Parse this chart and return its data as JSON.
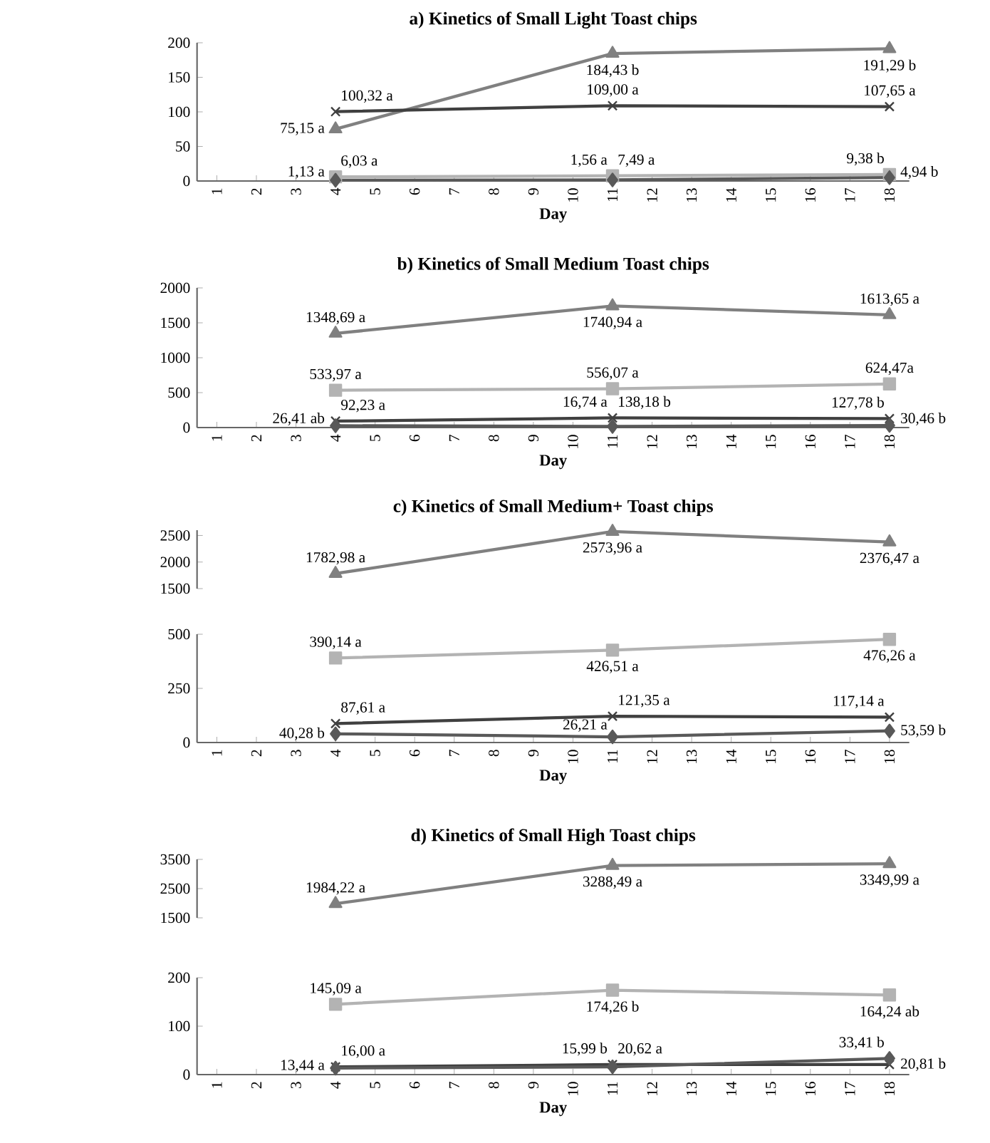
{
  "chart_data": [
    {
      "type": "line",
      "title": "a) Kinetics of Small Light Toast chips",
      "xlabel": "Day",
      "categories": [
        "1",
        "2",
        "3",
        "4",
        "5",
        "6",
        "7",
        "8",
        "9",
        "10",
        "11",
        "12",
        "13",
        "14",
        "15",
        "16",
        "17",
        "18"
      ],
      "ylim": [
        0,
        200
      ],
      "yticks": [
        0,
        50,
        100,
        150,
        200
      ],
      "series": [
        {
          "color": "#808080",
          "marker": "triangle",
          "values": [
            null,
            null,
            null,
            75.15,
            null,
            null,
            null,
            null,
            null,
            null,
            184.43,
            null,
            null,
            null,
            null,
            null,
            null,
            191.29
          ],
          "value_labels": [
            null,
            null,
            null,
            "75,15 a",
            null,
            null,
            null,
            null,
            null,
            null,
            "184,43 b",
            null,
            null,
            null,
            null,
            null,
            null,
            "191,29 b"
          ]
        },
        {
          "color": "#b3b3b3",
          "marker": "square",
          "values": [
            null,
            null,
            null,
            6.03,
            null,
            null,
            null,
            null,
            null,
            null,
            7.49,
            null,
            null,
            null,
            null,
            null,
            null,
            9.38
          ],
          "value_labels": [
            null,
            null,
            null,
            "6,03 a",
            null,
            null,
            null,
            null,
            null,
            null,
            "7,49 a",
            null,
            null,
            null,
            null,
            null,
            null,
            "9,38 b"
          ]
        },
        {
          "color": "#404040",
          "marker": "cross",
          "values": [
            null,
            null,
            null,
            100.32,
            null,
            null,
            null,
            null,
            null,
            null,
            109.0,
            null,
            null,
            null,
            null,
            null,
            null,
            107.65
          ],
          "value_labels": [
            null,
            null,
            null,
            "100,32 a",
            null,
            null,
            null,
            null,
            null,
            null,
            "109,00 a",
            null,
            null,
            null,
            null,
            null,
            null,
            "107,65 a"
          ]
        },
        {
          "color": "#595959",
          "marker": "diamond",
          "values": [
            null,
            null,
            null,
            1.13,
            null,
            null,
            null,
            null,
            null,
            null,
            1.56,
            null,
            null,
            null,
            null,
            null,
            null,
            4.94
          ],
          "value_labels": [
            null,
            null,
            null,
            "1,13 a",
            null,
            null,
            null,
            null,
            null,
            null,
            "1,56 a",
            null,
            null,
            null,
            null,
            null,
            null,
            "4,94 b"
          ]
        }
      ]
    },
    {
      "type": "line",
      "title": "b) Kinetics of Small Medium Toast chips",
      "xlabel": "Day",
      "categories": [
        "1",
        "2",
        "3",
        "4",
        "5",
        "6",
        "7",
        "8",
        "9",
        "10",
        "11",
        "12",
        "13",
        "14",
        "15",
        "16",
        "17",
        "18"
      ],
      "ylim": [
        0,
        2000
      ],
      "yticks": [
        0,
        500,
        1000,
        1500,
        2000
      ],
      "series": [
        {
          "color": "#808080",
          "marker": "triangle",
          "values": [
            null,
            null,
            null,
            1348.69,
            null,
            null,
            null,
            null,
            null,
            null,
            1740.94,
            null,
            null,
            null,
            null,
            null,
            null,
            1613.65
          ],
          "value_labels": [
            null,
            null,
            null,
            "1348,69 a",
            null,
            null,
            null,
            null,
            null,
            null,
            "1740,94 a",
            null,
            null,
            null,
            null,
            null,
            null,
            "1613,65 a"
          ]
        },
        {
          "color": "#b3b3b3",
          "marker": "square",
          "values": [
            null,
            null,
            null,
            533.97,
            null,
            null,
            null,
            null,
            null,
            null,
            556.07,
            null,
            null,
            null,
            null,
            null,
            null,
            624.47
          ],
          "value_labels": [
            null,
            null,
            null,
            "533,97 a",
            null,
            null,
            null,
            null,
            null,
            null,
            "556,07 a",
            null,
            null,
            null,
            null,
            null,
            null,
            "624,47a"
          ]
        },
        {
          "color": "#404040",
          "marker": "cross",
          "values": [
            null,
            null,
            null,
            92.23,
            null,
            null,
            null,
            null,
            null,
            null,
            138.18,
            null,
            null,
            null,
            null,
            null,
            null,
            127.78
          ],
          "value_labels": [
            null,
            null,
            null,
            "92,23 a",
            null,
            null,
            null,
            null,
            null,
            null,
            "138,18 b",
            null,
            null,
            null,
            null,
            null,
            null,
            "127,78 b"
          ]
        },
        {
          "color": "#595959",
          "marker": "diamond",
          "values": [
            null,
            null,
            null,
            26.41,
            null,
            null,
            null,
            null,
            null,
            null,
            16.74,
            null,
            null,
            null,
            null,
            null,
            null,
            30.46
          ],
          "value_labels": [
            null,
            null,
            null,
            "26,41 ab",
            null,
            null,
            null,
            null,
            null,
            null,
            "16,74 a",
            null,
            null,
            null,
            null,
            null,
            null,
            "30,46 b"
          ]
        }
      ]
    },
    {
      "type": "line",
      "title": "c) Kinetics of Small Medium+ Toast chips",
      "tick_labels": "y",
      "categories": [
        "1",
        "2",
        "3",
        "4",
        "5",
        "6",
        "7",
        "8",
        "9",
        "10",
        "11",
        "12",
        "13",
        "14",
        "15",
        "16",
        "17",
        "18"
      ],
      "ylim": [
        1500,
        2600
      ],
      "yticks": [
        1500,
        2000,
        2500
      ],
      "series": [
        {
          "color": "#808080",
          "marker": "triangle",
          "values": [
            null,
            null,
            null,
            1782.98,
            null,
            null,
            null,
            null,
            null,
            null,
            2573.96,
            null,
            null,
            null,
            null,
            null,
            null,
            2376.47
          ],
          "value_labels": [
            null,
            null,
            null,
            "1782,98 a",
            null,
            null,
            null,
            null,
            null,
            null,
            "2573,96 a",
            null,
            null,
            null,
            null,
            null,
            null,
            "2376,47 a"
          ]
        }
      ]
    },
    {
      "type": "line",
      "xlabel": "Day",
      "categories": [
        "1",
        "2",
        "3",
        "4",
        "5",
        "6",
        "7",
        "8",
        "9",
        "10",
        "11",
        "12",
        "13",
        "14",
        "15",
        "16",
        "17",
        "18"
      ],
      "ylim": [
        0,
        500
      ],
      "yticks": [
        0,
        250,
        500
      ],
      "series": [
        {
          "color": "#b3b3b3",
          "marker": "square",
          "values": [
            null,
            null,
            null,
            390.14,
            null,
            null,
            null,
            null,
            null,
            null,
            426.51,
            null,
            null,
            null,
            null,
            null,
            null,
            476.26
          ],
          "value_labels": [
            null,
            null,
            null,
            "390,14 a",
            null,
            null,
            null,
            null,
            null,
            null,
            "426,51 a",
            null,
            null,
            null,
            null,
            null,
            null,
            "476,26 a"
          ]
        },
        {
          "color": "#404040",
          "marker": "cross",
          "values": [
            null,
            null,
            null,
            87.61,
            null,
            null,
            null,
            null,
            null,
            null,
            121.35,
            null,
            null,
            null,
            null,
            null,
            null,
            117.14
          ],
          "value_labels": [
            null,
            null,
            null,
            "87,61 a",
            null,
            null,
            null,
            null,
            null,
            null,
            "121,35 a",
            null,
            null,
            null,
            null,
            null,
            null,
            "117,14 a"
          ]
        },
        {
          "color": "#595959",
          "marker": "diamond",
          "values": [
            null,
            null,
            null,
            40.28,
            null,
            null,
            null,
            null,
            null,
            null,
            26.21,
            null,
            null,
            null,
            null,
            null,
            null,
            53.59
          ],
          "value_labels": [
            null,
            null,
            null,
            "40,28 b",
            null,
            null,
            null,
            null,
            null,
            null,
            "26,21 a",
            null,
            null,
            null,
            null,
            null,
            null,
            "53,59 b"
          ]
        }
      ]
    },
    {
      "type": "line",
      "title": "d) Kinetics of Small High Toast chips",
      "tick_labels": "y",
      "categories": [
        "1",
        "2",
        "3",
        "4",
        "5",
        "6",
        "7",
        "8",
        "9",
        "10",
        "11",
        "12",
        "13",
        "14",
        "15",
        "16",
        "17",
        "18"
      ],
      "ylim": [
        1500,
        3500
      ],
      "yticks": [
        1500,
        2500,
        3500
      ],
      "series": [
        {
          "color": "#808080",
          "marker": "triangle",
          "values": [
            null,
            null,
            null,
            1984.22,
            null,
            null,
            null,
            null,
            null,
            null,
            3288.49,
            null,
            null,
            null,
            null,
            null,
            null,
            3349.99
          ],
          "value_labels": [
            null,
            null,
            null,
            "1984,22 a",
            null,
            null,
            null,
            null,
            null,
            null,
            "3288,49 a",
            null,
            null,
            null,
            null,
            null,
            null,
            "3349,99 a"
          ]
        }
      ]
    },
    {
      "type": "line",
      "xlabel": "Day",
      "categories": [
        "1",
        "2",
        "3",
        "4",
        "5",
        "6",
        "7",
        "8",
        "9",
        "10",
        "11",
        "12",
        "13",
        "14",
        "15",
        "16",
        "17",
        "18"
      ],
      "ylim": [
        0,
        200
      ],
      "yticks": [
        0,
        100,
        200
      ],
      "series": [
        {
          "color": "#b3b3b3",
          "marker": "square",
          "values": [
            null,
            null,
            null,
            145.09,
            null,
            null,
            null,
            null,
            null,
            null,
            174.26,
            null,
            null,
            null,
            null,
            null,
            null,
            164.24
          ],
          "value_labels": [
            null,
            null,
            null,
            "145,09 a",
            null,
            null,
            null,
            null,
            null,
            null,
            "174,26 b",
            null,
            null,
            null,
            null,
            null,
            null,
            "164,24 ab"
          ]
        },
        {
          "color": "#404040",
          "marker": "cross",
          "values": [
            null,
            null,
            null,
            16.0,
            null,
            null,
            null,
            null,
            null,
            null,
            20.62,
            null,
            null,
            null,
            null,
            null,
            null,
            20.81
          ],
          "value_labels": [
            null,
            null,
            null,
            "16,00 a",
            null,
            null,
            null,
            null,
            null,
            null,
            "20,62 a",
            null,
            null,
            null,
            null,
            null,
            null,
            "20,81 b"
          ]
        },
        {
          "color": "#595959",
          "marker": "diamond",
          "values": [
            null,
            null,
            null,
            13.44,
            null,
            null,
            null,
            null,
            null,
            null,
            15.99,
            null,
            null,
            null,
            null,
            null,
            null,
            33.41
          ],
          "value_labels": [
            null,
            null,
            null,
            "13,44 a",
            null,
            null,
            null,
            null,
            null,
            null,
            "15,99 b",
            null,
            null,
            null,
            null,
            null,
            null,
            "33,41 b"
          ]
        }
      ]
    }
  ]
}
